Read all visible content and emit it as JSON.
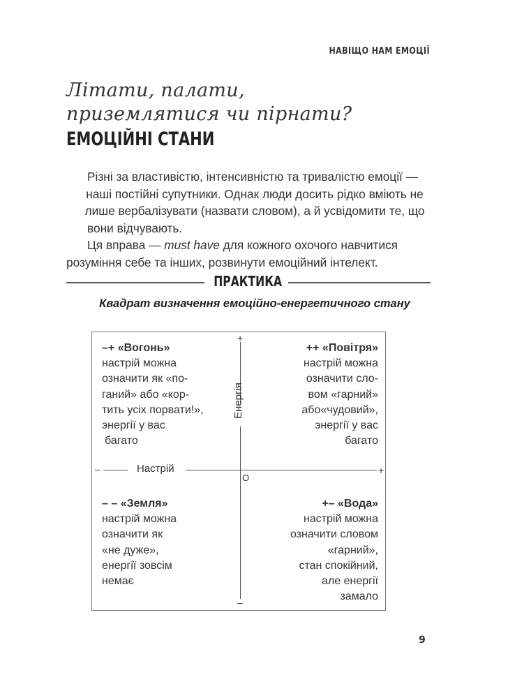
{
  "running_head": "НАВІЩО НАМ ЕМОЦІЇ",
  "title_script": [
    "Літати, палати,",
    "приземлятися чи пірнати?"
  ],
  "title_main": "ЕМОЦІЙНІ СТАНИ",
  "body": {
    "p1": [
      "Різні за властивістю, інтенсивністю та тривалістю емоції —",
      "наші постійні супутники. Однак люди досить рідко вміють не",
      "лише вербалізувати (назвати словом), а й усвідомити те, що",
      "вони відчувають."
    ],
    "p2_before": "Ця вправа — ",
    "p2_em": "must have",
    "p2_after": " для кожного охочого навчитися",
    "p2_line2": "розуміння себе та інших, розвинути емоційний інтелект."
  },
  "practice_label": "ПРАКТИКА",
  "subtitle": "Квадрат визначення емоційно-енергетичного стану",
  "square": {
    "vertical_axis_label": "Енергія",
    "horizontal_axis_label": "Настрій",
    "origin": "О",
    "top_sign": "+",
    "bottom_sign": "–",
    "left_sign": "–",
    "right_sign": "+",
    "quadrants": {
      "top_left": {
        "heading": "–+ «Вогонь»",
        "lines": [
          "настрій можна",
          "означити як «по-",
          "ганий» або «кор-",
          "тить усіх порвати!»,",
          "энергії у вас",
          " багато"
        ]
      },
      "top_right": {
        "heading": "++ «Повітря»",
        "lines": [
          "настрій можна",
          "означити сло-",
          "вом «гарний»",
          "або«чудовий»,",
          "энергії у вас",
          "багато"
        ]
      },
      "bottom_left": {
        "heading": "– – «Земля»",
        "lines": [
          "настрій можна",
          "означити як",
          "«не дуже»,",
          "енергії зовсім",
          "немає"
        ]
      },
      "bottom_right": {
        "heading": "+– «Вода»",
        "lines": [
          "настрій можна",
          "означити словом",
          "«гарний»,",
          "стан спокійний,",
          "але енергії",
          "замало"
        ]
      }
    }
  },
  "page_number": "9"
}
